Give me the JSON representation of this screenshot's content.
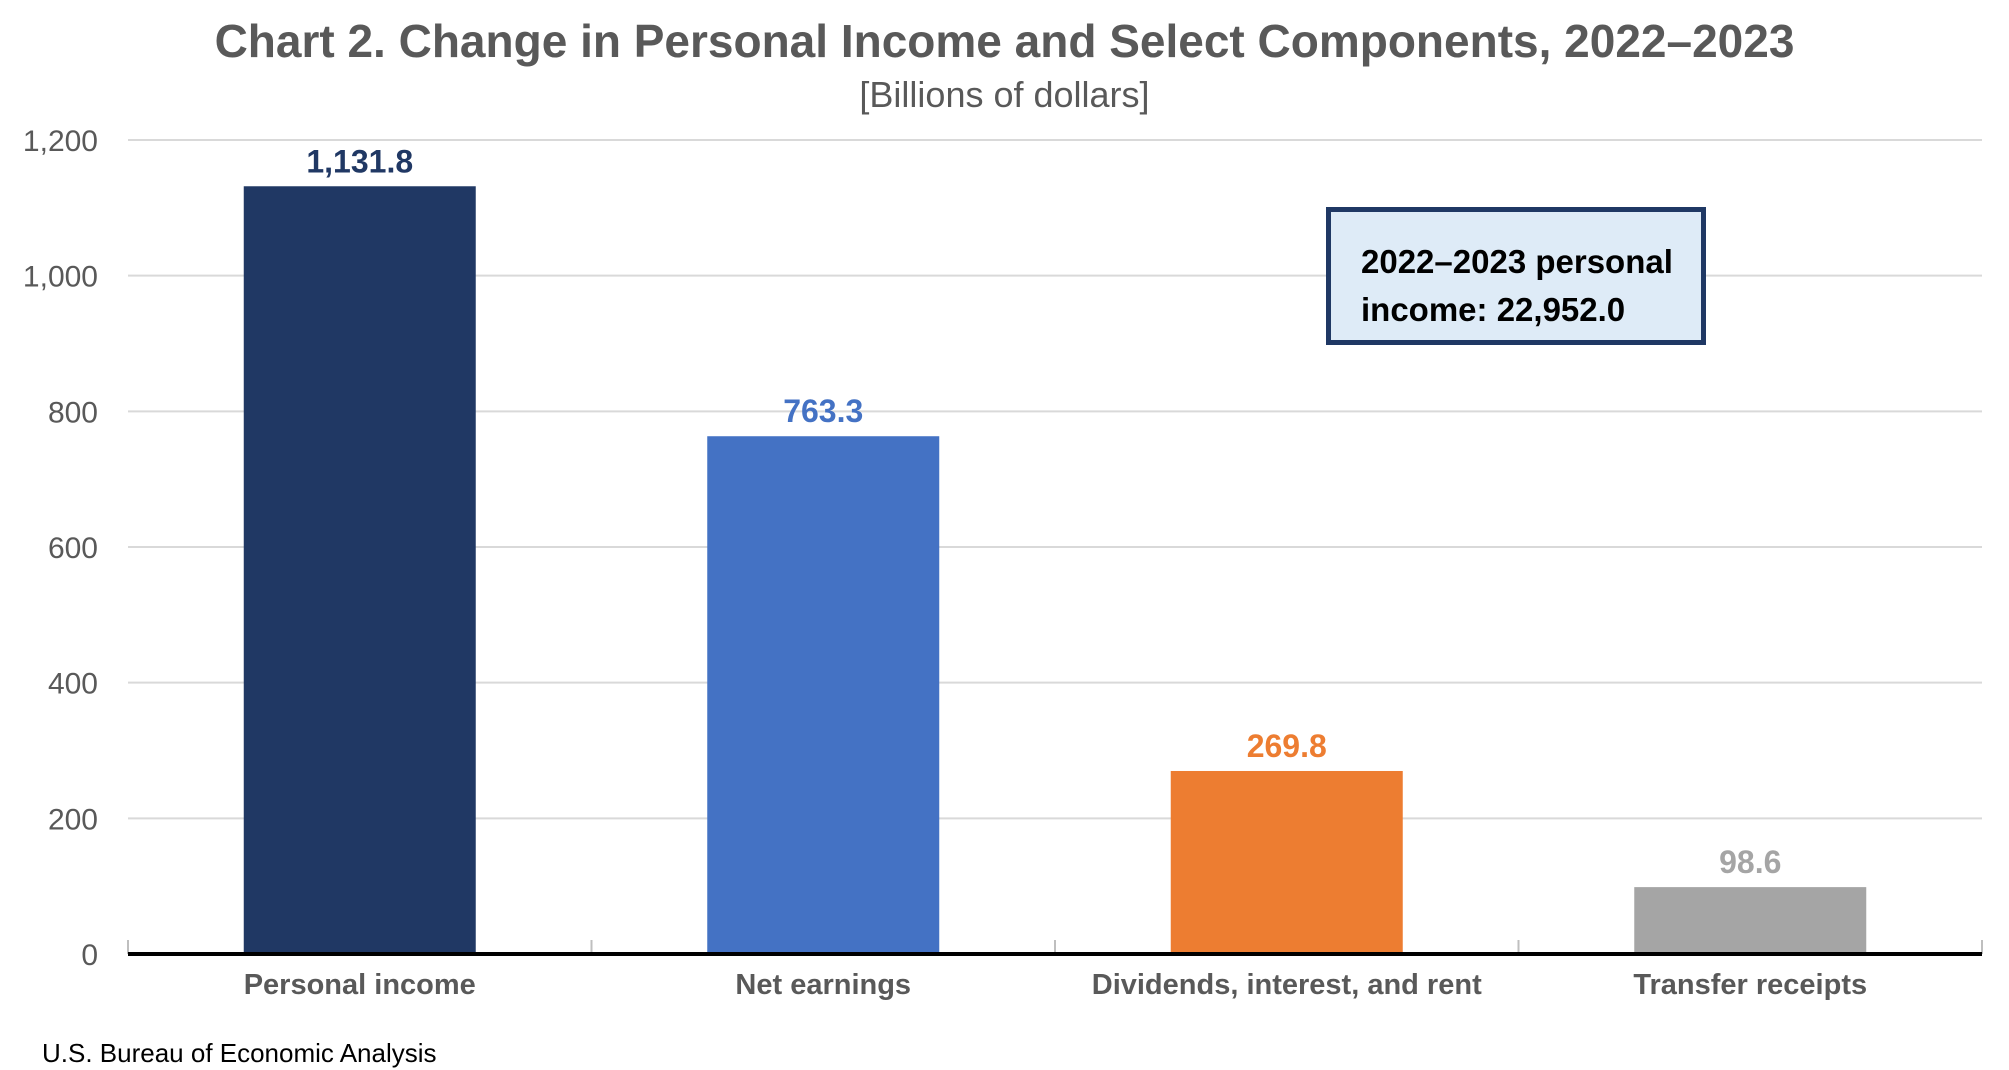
{
  "chart_data": {
    "type": "bar",
    "title": "Chart 2. Change in Personal Income and Select Components, 2022–2023",
    "subtitle": "[Billions of dollars]",
    "xlabel": "",
    "ylabel": "",
    "categories": [
      "Personal income",
      "Net earnings",
      "Dividends, interest, and rent",
      "Transfer receipts"
    ],
    "values": [
      1131.8,
      763.3,
      269.8,
      98.6
    ],
    "value_labels": [
      "1,131.8",
      "763.3",
      "269.8",
      "98.6"
    ],
    "colors": [
      "#203864",
      "#4472c4",
      "#ed7d31",
      "#a5a5a5"
    ],
    "ylim": [
      0,
      1200
    ],
    "yticks": [
      0,
      200,
      400,
      600,
      800,
      1000,
      1200
    ],
    "ytick_labels": [
      "0",
      "200",
      "400",
      "600",
      "800",
      "1,000",
      "1,200"
    ],
    "grid": true,
    "legend": "none",
    "annotation": {
      "line1": "2022–2023 personal",
      "line2": "income: 22,952.0"
    }
  },
  "source": "U.S. Bureau of Economic Analysis"
}
